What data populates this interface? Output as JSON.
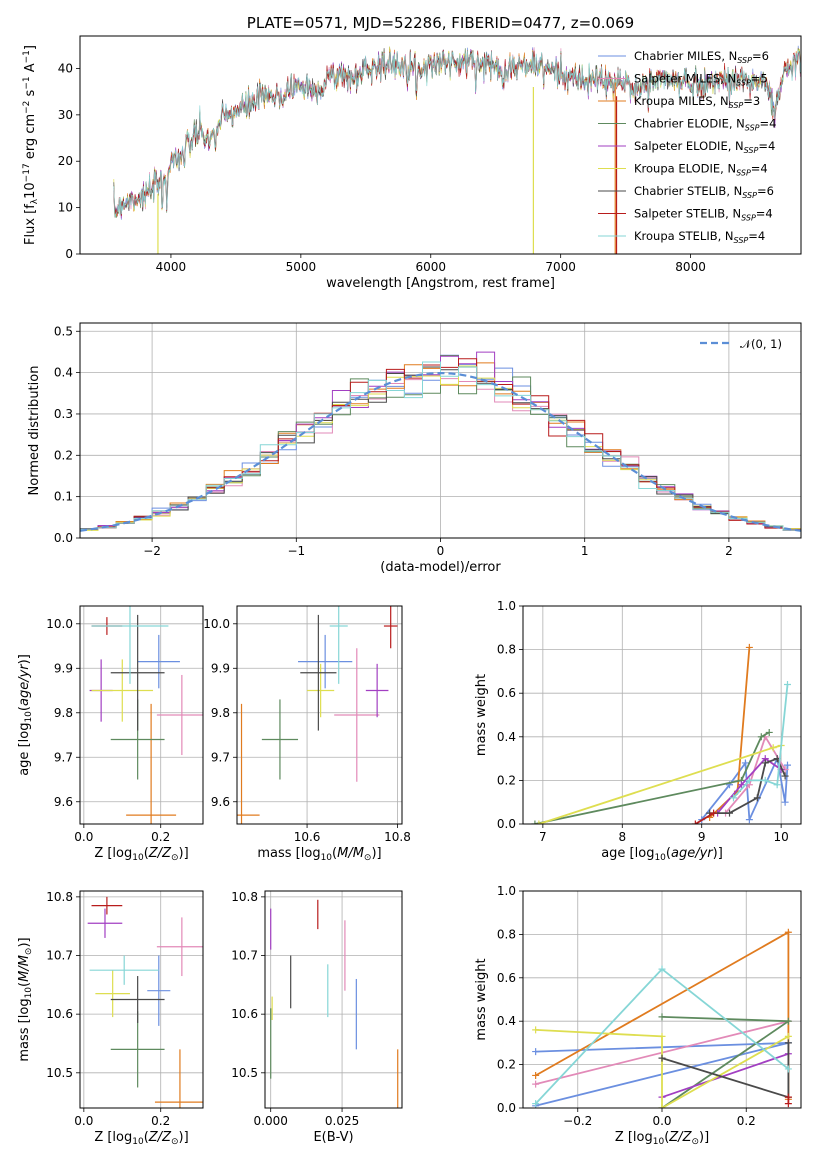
{
  "chart_data": [
    {
      "id": "spectrum",
      "type": "line",
      "title": "PLATE=0571, MJD=52286, FIBERID=0477, z=0.069",
      "xlabel": "wavelength [Angstrom, rest frame]",
      "ylabel": "Flux [fλ10⁻¹⁷ erg cm⁻² s⁻¹ A⁻¹]",
      "xlim": [
        3300,
        8850
      ],
      "ylim": [
        0,
        47
      ],
      "xticks": [
        4000,
        5000,
        6000,
        7000,
        8000
      ],
      "yticks": [
        0,
        10,
        20,
        30,
        40
      ],
      "grid": false,
      "legend_position": "top-right",
      "continuum": [
        [
          3560,
          9
        ],
        [
          3620,
          11
        ],
        [
          3700,
          12
        ],
        [
          3800,
          12.5
        ],
        [
          3900,
          15
        ],
        [
          3960,
          17
        ],
        [
          4000,
          20
        ],
        [
          4100,
          22
        ],
        [
          4200,
          26
        ],
        [
          4300,
          25
        ],
        [
          4400,
          29
        ],
        [
          4500,
          31
        ],
        [
          4600,
          32
        ],
        [
          4700,
          34
        ],
        [
          4800,
          33.5
        ],
        [
          4900,
          35.5
        ],
        [
          5000,
          36.5
        ],
        [
          5100,
          35
        ],
        [
          5200,
          38
        ],
        [
          5300,
          39
        ],
        [
          5400,
          37.5
        ],
        [
          5500,
          40
        ],
        [
          5600,
          41
        ],
        [
          5700,
          40.5
        ],
        [
          5800,
          41.5
        ],
        [
          5900,
          40
        ],
        [
          6000,
          41
        ],
        [
          6100,
          41.5
        ],
        [
          6200,
          41
        ],
        [
          6300,
          41.5
        ],
        [
          6400,
          41
        ],
        [
          6500,
          40.5
        ],
        [
          6600,
          40
        ],
        [
          6700,
          40.5
        ],
        [
          6800,
          41
        ],
        [
          6900,
          40
        ],
        [
          7000,
          39
        ],
        [
          7100,
          38
        ],
        [
          7200,
          37
        ],
        [
          7300,
          38
        ],
        [
          7400,
          36.5
        ],
        [
          7500,
          37
        ],
        [
          7600,
          35.5
        ],
        [
          7700,
          37
        ],
        [
          7800,
          38
        ],
        [
          7900,
          37
        ],
        [
          8000,
          37
        ],
        [
          8100,
          36.5
        ],
        [
          8200,
          37.5
        ],
        [
          8300,
          37
        ],
        [
          8400,
          38
        ],
        [
          8500,
          37
        ],
        [
          8600,
          36
        ],
        [
          8650,
          30
        ],
        [
          8700,
          38
        ],
        [
          8800,
          41
        ],
        [
          8850,
          42.5
        ]
      ],
      "series": [
        {
          "name": "Chabrier MILES, N$_{SSP}$=6",
          "color": "#6b8fe0"
        },
        {
          "name": "Salpeter MILES, N$_{SSP}$=5",
          "color": "#e28ab8"
        },
        {
          "name": "Kroupa MILES, N$_{SSP}$=3",
          "color": "#e07b1f"
        },
        {
          "name": "Chabrier ELODIE, N$_{SSP}$=4",
          "color": "#5e8a5e"
        },
        {
          "name": "Salpeter ELODIE, N$_{SSP}$=4",
          "color": "#a23fc2"
        },
        {
          "name": "Kroupa ELODIE, N$_{SSP}$=4",
          "color": "#dede50"
        },
        {
          "name": "Chabrier STELIB, N$_{SSP}$=6",
          "color": "#4a4a4a"
        },
        {
          "name": "Salpeter STELIB, N$_{SSP}$=4",
          "color": "#b81c1c"
        },
        {
          "name": "Kroupa STELIB, N$_{SSP}$=4",
          "color": "#86d6d6"
        }
      ]
    },
    {
      "id": "residuals",
      "type": "histogram",
      "xlabel": "(data-model)/error",
      "ylabel": "Normed distribution",
      "xlim": [
        -2.5,
        2.5
      ],
      "ylim": [
        0,
        0.52
      ],
      "xticks": [
        -2,
        -1,
        0,
        1,
        2
      ],
      "xtick_labels": [
        "−2",
        "−1",
        "0",
        "1",
        "2"
      ],
      "yticks": [
        0,
        0.1,
        0.2,
        0.3,
        0.4,
        0.5
      ],
      "ytick_labels": [
        "0.0",
        "0.1",
        "0.2",
        "0.3",
        "0.4",
        "0.5"
      ],
      "grid": true,
      "reference_curve": {
        "label": "N(0, 1)",
        "mean": 0,
        "sigma": 1,
        "color": "#5b8ed6"
      },
      "legend_position": "top-right"
    },
    {
      "id": "z-age",
      "type": "scatter",
      "xlabel": "Z [log10(Z/Z⊙)]",
      "ylabel": "age  [log10(age/yr)]",
      "xlim": [
        -0.01,
        0.31
      ],
      "ylim": [
        9.55,
        10.04
      ],
      "xticks": [
        0.0,
        0.2
      ],
      "xtick_labels": [
        "0.0",
        "0.2"
      ],
      "yticks": [
        9.6,
        9.7,
        9.8,
        9.9,
        10.0
      ],
      "ytick_labels": [
        "9.6",
        "9.7",
        "9.8",
        "9.9",
        "10.0"
      ],
      "grid": true,
      "points": [
        {
          "x": 0.195,
          "y": 9.915,
          "xerr": 0.055,
          "yerr": 0.06,
          "color": "#6b8fe0"
        },
        {
          "x": 0.255,
          "y": 9.795,
          "xerr": 0.065,
          "yerr": 0.09,
          "color": "#e28ab8"
        },
        {
          "x": 0.175,
          "y": 9.57,
          "xerr": 0.065,
          "yerr": 0.25,
          "color": "#e07b1f"
        },
        {
          "x": 0.14,
          "y": 9.74,
          "xerr": 0.07,
          "yerr": 0.09,
          "color": "#5e8a5e"
        },
        {
          "x": 0.045,
          "y": 9.85,
          "xerr": 0.03,
          "yerr": 0.07,
          "color": "#a23fc2"
        },
        {
          "x": 0.1,
          "y": 9.85,
          "xerr": 0.08,
          "yerr": 0.07,
          "color": "#dede50"
        },
        {
          "x": 0.14,
          "y": 9.89,
          "xerr": 0.07,
          "yerr": 0.13,
          "color": "#4a4a4a"
        },
        {
          "x": 0.06,
          "y": 9.995,
          "xerr": 0.04,
          "yerr": 0.02,
          "color": "#b81c1c"
        },
        {
          "x": 0.12,
          "y": 9.995,
          "xerr": 0.1,
          "yerr": 0.13,
          "color": "#86d6d6"
        }
      ]
    },
    {
      "id": "mass-age",
      "type": "scatter",
      "xlabel": "mass [log10(M/M⊙)]",
      "ylabel": "",
      "xlim": [
        10.445,
        10.81
      ],
      "ylim": [
        9.55,
        10.04
      ],
      "xticks": [
        10.6,
        10.8
      ],
      "xtick_labels": [
        "10.6",
        "10.8"
      ],
      "yticks": [
        9.6,
        9.7,
        9.8,
        9.9,
        10.0
      ],
      "ytick_labels": [
        "9.6",
        "9.7",
        "9.8",
        "9.9",
        "10.0"
      ],
      "grid": true,
      "points": [
        {
          "x": 10.64,
          "y": 9.915,
          "xerr": 0.06,
          "yerr": 0.06,
          "color": "#6b8fe0"
        },
        {
          "x": 10.71,
          "y": 9.795,
          "xerr": 0.05,
          "yerr": 0.15,
          "color": "#e28ab8"
        },
        {
          "x": 10.455,
          "y": 9.57,
          "xerr": 0.04,
          "yerr": 0.25,
          "color": "#e07b1f"
        },
        {
          "x": 10.54,
          "y": 9.74,
          "xerr": 0.04,
          "yerr": 0.09,
          "color": "#5e8a5e"
        },
        {
          "x": 10.755,
          "y": 9.85,
          "xerr": 0.025,
          "yerr": 0.06,
          "color": "#a23fc2"
        },
        {
          "x": 10.63,
          "y": 9.85,
          "xerr": 0.03,
          "yerr": 0.06,
          "color": "#dede50"
        },
        {
          "x": 10.625,
          "y": 9.89,
          "xerr": 0.04,
          "yerr": 0.13,
          "color": "#4a4a4a"
        },
        {
          "x": 10.785,
          "y": 9.995,
          "xerr": 0.015,
          "yerr": 0.05,
          "color": "#b81c1c"
        },
        {
          "x": 10.67,
          "y": 9.995,
          "xerr": 0.02,
          "yerr": 0.13,
          "color": "#86d6d6"
        }
      ]
    },
    {
      "id": "age-weight",
      "type": "line",
      "xlabel": "age  [log10(age/yr)]",
      "ylabel": "mass weight",
      "xlim": [
        6.75,
        10.25
      ],
      "ylim": [
        0,
        1.0
      ],
      "xticks": [
        7,
        8,
        9,
        10
      ],
      "xtick_labels": [
        "7",
        "8",
        "9",
        "10"
      ],
      "yticks": [
        0,
        0.2,
        0.4,
        0.6,
        0.8,
        1.0
      ],
      "ytick_labels": [
        "0.0",
        "0.2",
        "0.4",
        "0.6",
        "0.8",
        "1.0"
      ],
      "grid": true,
      "series": [
        {
          "color": "#6b8fe0",
          "points": [
            [
              9.0,
              0.02
            ],
            [
              9.35,
              0.18
            ],
            [
              9.55,
              0.28
            ],
            [
              9.6,
              0.02
            ],
            [
              9.95,
              0.3
            ],
            [
              10.05,
              0.1
            ],
            [
              10.08,
              0.27
            ]
          ]
        },
        {
          "color": "#e28ab8",
          "points": [
            [
              9.3,
              0.05
            ],
            [
              9.6,
              0.18
            ],
            [
              9.8,
              0.4
            ],
            [
              10.05,
              0.25
            ]
          ]
        },
        {
          "color": "#e07b1f",
          "points": [
            [
              9.1,
              0.03
            ],
            [
              9.45,
              0.15
            ],
            [
              9.6,
              0.81
            ]
          ]
        },
        {
          "color": "#5e8a5e",
          "points": [
            [
              6.9,
              0.0
            ],
            [
              9.5,
              0.2
            ],
            [
              9.75,
              0.4
            ],
            [
              9.85,
              0.42
            ]
          ]
        },
        {
          "color": "#a23fc2",
          "points": [
            [
              9.2,
              0.05
            ],
            [
              9.5,
              0.18
            ],
            [
              9.8,
              0.3
            ],
            [
              10.0,
              0.25
            ]
          ]
        },
        {
          "color": "#dede50",
          "points": [
            [
              6.95,
              0.0
            ],
            [
              9.9,
              0.35
            ],
            [
              10.0,
              0.36
            ]
          ]
        },
        {
          "color": "#4a4a4a",
          "points": [
            [
              9.1,
              0.05
            ],
            [
              9.35,
              0.05
            ],
            [
              9.7,
              0.12
            ],
            [
              9.8,
              0.28
            ],
            [
              9.95,
              0.3
            ],
            [
              10.05,
              0.22
            ]
          ]
        },
        {
          "color": "#b81c1c",
          "points": [
            [
              8.92,
              0.0
            ],
            [
              9.15,
              0.05
            ]
          ]
        },
        {
          "color": "#86d6d6",
          "points": [
            [
              9.4,
              0.12
            ],
            [
              9.6,
              0.2
            ],
            [
              9.8,
              0.2
            ],
            [
              9.95,
              0.18
            ],
            [
              10.08,
              0.64
            ]
          ]
        }
      ]
    },
    {
      "id": "z-mass",
      "type": "scatter",
      "xlabel": "Z [log10(Z/Z⊙)]",
      "ylabel": "mass [log10(M/M⊙)]",
      "xlim": [
        -0.01,
        0.31
      ],
      "ylim": [
        10.44,
        10.81
      ],
      "xticks": [
        0.0,
        0.2
      ],
      "xtick_labels": [
        "0.0",
        "0.2"
      ],
      "yticks": [
        10.5,
        10.6,
        10.7,
        10.8
      ],
      "ytick_labels": [
        "10.5",
        "10.6",
        "10.7",
        "10.8"
      ],
      "grid": true,
      "points": [
        {
          "x": 0.195,
          "y": 10.64,
          "xerr": 0.03,
          "yerr": 0.06,
          "color": "#6b8fe0"
        },
        {
          "x": 0.255,
          "y": 10.715,
          "xerr": 0.065,
          "yerr": 0.05,
          "color": "#e28ab8"
        },
        {
          "x": 0.25,
          "y": 10.45,
          "xerr": 0.065,
          "yerr": 0.09,
          "color": "#e07b1f"
        },
        {
          "x": 0.14,
          "y": 10.54,
          "xerr": 0.07,
          "yerr": 0.065,
          "color": "#5e8a5e"
        },
        {
          "x": 0.055,
          "y": 10.755,
          "xerr": 0.045,
          "yerr": 0.025,
          "color": "#a23fc2"
        },
        {
          "x": 0.075,
          "y": 10.635,
          "xerr": 0.045,
          "yerr": 0.04,
          "color": "#dede50"
        },
        {
          "x": 0.14,
          "y": 10.625,
          "xerr": 0.07,
          "yerr": 0.04,
          "color": "#4a4a4a"
        },
        {
          "x": 0.06,
          "y": 10.785,
          "xerr": 0.04,
          "yerr": 0.015,
          "color": "#b81c1c"
        },
        {
          "x": 0.105,
          "y": 10.675,
          "xerr": 0.09,
          "yerr": 0.025,
          "color": "#86d6d6"
        }
      ]
    },
    {
      "id": "ebv-mass",
      "type": "scatter",
      "xlabel": "E(B-V)",
      "ylabel": "",
      "xlim": [
        -0.002,
        0.046
      ],
      "ylim": [
        10.44,
        10.81
      ],
      "xticks": [
        0.0,
        0.025
      ],
      "xtick_labels": [
        "0.000",
        "0.025"
      ],
      "yticks": [
        10.5,
        10.6,
        10.7,
        10.8
      ],
      "ytick_labels": [
        "10.5",
        "10.6",
        "10.7",
        "10.8"
      ],
      "grid": true,
      "points": [
        {
          "x": 0.03,
          "y": 10.6,
          "xerr": 0,
          "yerr": 0.06,
          "color": "#6b8fe0"
        },
        {
          "x": 0.026,
          "y": 10.7,
          "xerr": 0,
          "yerr": 0.06,
          "color": "#e28ab8"
        },
        {
          "x": 0.0445,
          "y": 10.48,
          "xerr": 0,
          "yerr": 0.06,
          "color": "#e07b1f"
        },
        {
          "x": 0.0,
          "y": 10.55,
          "xerr": 0,
          "yerr": 0.06,
          "color": "#5e8a5e"
        },
        {
          "x": 0.0,
          "y": 10.745,
          "xerr": 0,
          "yerr": 0.035,
          "color": "#a23fc2"
        },
        {
          "x": 0.0005,
          "y": 10.61,
          "xerr": 0,
          "yerr": 0.02,
          "color": "#dede50"
        },
        {
          "x": 0.007,
          "y": 10.655,
          "xerr": 0,
          "yerr": 0.045,
          "color": "#4a4a4a"
        },
        {
          "x": 0.0165,
          "y": 10.77,
          "xerr": 0,
          "yerr": 0.025,
          "color": "#b81c1c"
        },
        {
          "x": 0.02,
          "y": 10.64,
          "xerr": 0,
          "yerr": 0.045,
          "color": "#86d6d6"
        }
      ]
    },
    {
      "id": "z-weight",
      "type": "line",
      "xlabel": "Z [log10(Z/Z⊙)]",
      "ylabel": "mass weight",
      "xlim": [
        -0.33,
        0.33
      ],
      "ylim": [
        0,
        1.0
      ],
      "xticks": [
        -0.2,
        0.0,
        0.2
      ],
      "xtick_labels": [
        "−0.2",
        "0.0",
        "0.2"
      ],
      "yticks": [
        0,
        0.2,
        0.4,
        0.6,
        0.8,
        1.0
      ],
      "ytick_labels": [
        "0.0",
        "0.2",
        "0.4",
        "0.6",
        "0.8",
        "1.0"
      ],
      "grid": true,
      "series": [
        {
          "color": "#6b8fe0",
          "points": [
            [
              -0.3,
              0.01
            ],
            [
              0.3,
              0.3
            ],
            [
              -0.3,
              0.26
            ]
          ]
        },
        {
          "color": "#e28ab8",
          "points": [
            [
              -0.3,
              0.11
            ],
            [
              0.3,
              0.4
            ]
          ]
        },
        {
          "color": "#e07b1f",
          "points": [
            [
              -0.3,
              0.15
            ],
            [
              0.3,
              0.81
            ],
            [
              0.3,
              0.04
            ]
          ]
        },
        {
          "color": "#5e8a5e",
          "points": [
            [
              0.0,
              0.0
            ],
            [
              0.3,
              0.4
            ],
            [
              0.0,
              0.42
            ]
          ]
        },
        {
          "color": "#a23fc2",
          "points": [
            [
              0.3,
              0.25
            ],
            [
              0.0,
              0.05
            ]
          ]
        },
        {
          "color": "#dede50",
          "points": [
            [
              -0.3,
              0.36
            ],
            [
              0.0,
              0.33
            ],
            [
              0.0,
              0.0
            ],
            [
              0.3,
              0.33
            ]
          ]
        },
        {
          "color": "#4a4a4a",
          "points": [
            [
              0.0,
              0.23
            ],
            [
              0.3,
              0.05
            ],
            [
              0.3,
              0.3
            ]
          ]
        },
        {
          "color": "#b81c1c",
          "points": [
            [
              0.3,
              0.05
            ],
            [
              0.3,
              0.02
            ]
          ]
        },
        {
          "color": "#86d6d6",
          "points": [
            [
              -0.3,
              0.02
            ],
            [
              0.0,
              0.64
            ],
            [
              0.3,
              0.18
            ]
          ]
        }
      ]
    }
  ]
}
